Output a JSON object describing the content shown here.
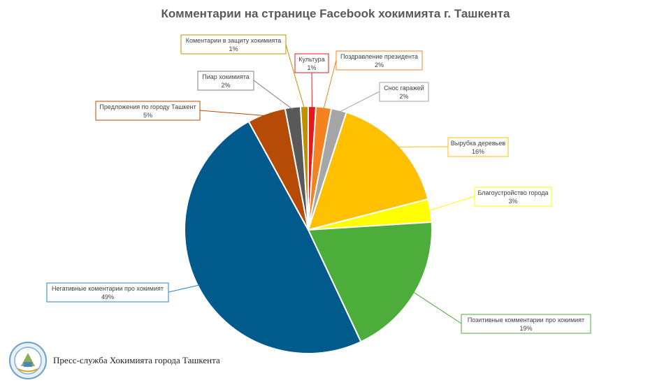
{
  "title": "Комментарии на странице Facebook хокимията г. Ташкента",
  "footer": {
    "text": "Пресс-служба Хокимията города Ташкента",
    "logo_icon": "emblem-icon"
  },
  "chart_data": {
    "type": "pie",
    "title": "Комментарии на странице Facebook хокимията г. Ташкента",
    "slices": [
      {
        "label": "Культура",
        "value": 1,
        "color": "#e41a1c"
      },
      {
        "label": "Поздравление президента",
        "value": 2,
        "color": "#f58220"
      },
      {
        "label": "Снос гаражей",
        "value": 2,
        "color": "#a6a6a6"
      },
      {
        "label": "Вырубка деревьев",
        "value": 16,
        "color": "#ffc000"
      },
      {
        "label": "Благоустройство города",
        "value": 3,
        "color": "#ffff00"
      },
      {
        "label": "Позитивные комментарии про хокимият",
        "value": 19,
        "color": "#4cad3a"
      },
      {
        "label": "Негативные коментарии про хокимият",
        "value": 49,
        "color": "#005a8c"
      },
      {
        "label": "Предложения по городу Ташкент",
        "value": 5,
        "color": "#b54b04"
      },
      {
        "label": "Пиар хокимията",
        "value": 2,
        "color": "#595959"
      },
      {
        "label": "Коментарии в защиту хокимията",
        "value": 1,
        "color": "#bf9000"
      }
    ],
    "value_suffix": "%",
    "start_angle_deg": 0,
    "legend": "none"
  }
}
